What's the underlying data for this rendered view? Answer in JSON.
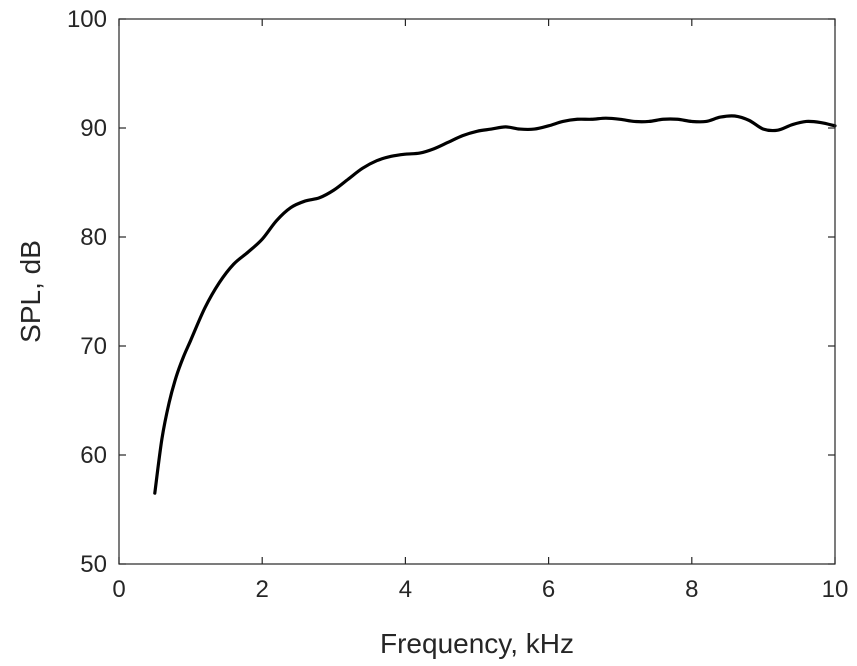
{
  "chart_data": {
    "type": "line",
    "title": "",
    "xlabel": "Frequency, kHz",
    "ylabel": "SPL, dB",
    "xlim": [
      0,
      10
    ],
    "ylim": [
      50,
      100
    ],
    "xticks": [
      0,
      2,
      4,
      6,
      8,
      10
    ],
    "yticks": [
      50,
      60,
      70,
      80,
      90,
      100
    ],
    "xtick_labels": [
      "0",
      "2",
      "4",
      "6",
      "8",
      "10"
    ],
    "ytick_labels": [
      "50",
      "60",
      "70",
      "80",
      "90",
      "100"
    ],
    "grid": false,
    "series": [
      {
        "color": "#000000",
        "x": [
          0.5,
          0.6,
          0.7,
          0.8,
          0.9,
          1.0,
          1.2,
          1.4,
          1.6,
          1.8,
          2.0,
          2.2,
          2.4,
          2.6,
          2.8,
          3.0,
          3.2,
          3.4,
          3.6,
          3.8,
          4.0,
          4.2,
          4.4,
          4.6,
          4.8,
          5.0,
          5.2,
          5.4,
          5.6,
          5.8,
          6.0,
          6.2,
          6.4,
          6.6,
          6.8,
          7.0,
          7.2,
          7.4,
          7.6,
          7.8,
          8.0,
          8.2,
          8.4,
          8.6,
          8.8,
          9.0,
          9.2,
          9.4,
          9.6,
          9.8,
          10.0
        ],
        "y": [
          56.5,
          61.5,
          64.8,
          67.2,
          69.0,
          70.5,
          73.5,
          75.8,
          77.5,
          78.6,
          79.8,
          81.5,
          82.7,
          83.3,
          83.6,
          84.3,
          85.3,
          86.3,
          87.0,
          87.4,
          87.6,
          87.7,
          88.1,
          88.7,
          89.3,
          89.7,
          89.9,
          90.1,
          89.9,
          89.9,
          90.2,
          90.6,
          90.8,
          90.8,
          90.9,
          90.8,
          90.6,
          90.6,
          90.8,
          90.8,
          90.6,
          90.6,
          91.0,
          91.1,
          90.7,
          89.9,
          89.8,
          90.3,
          90.6,
          90.5,
          90.2
        ]
      }
    ]
  }
}
